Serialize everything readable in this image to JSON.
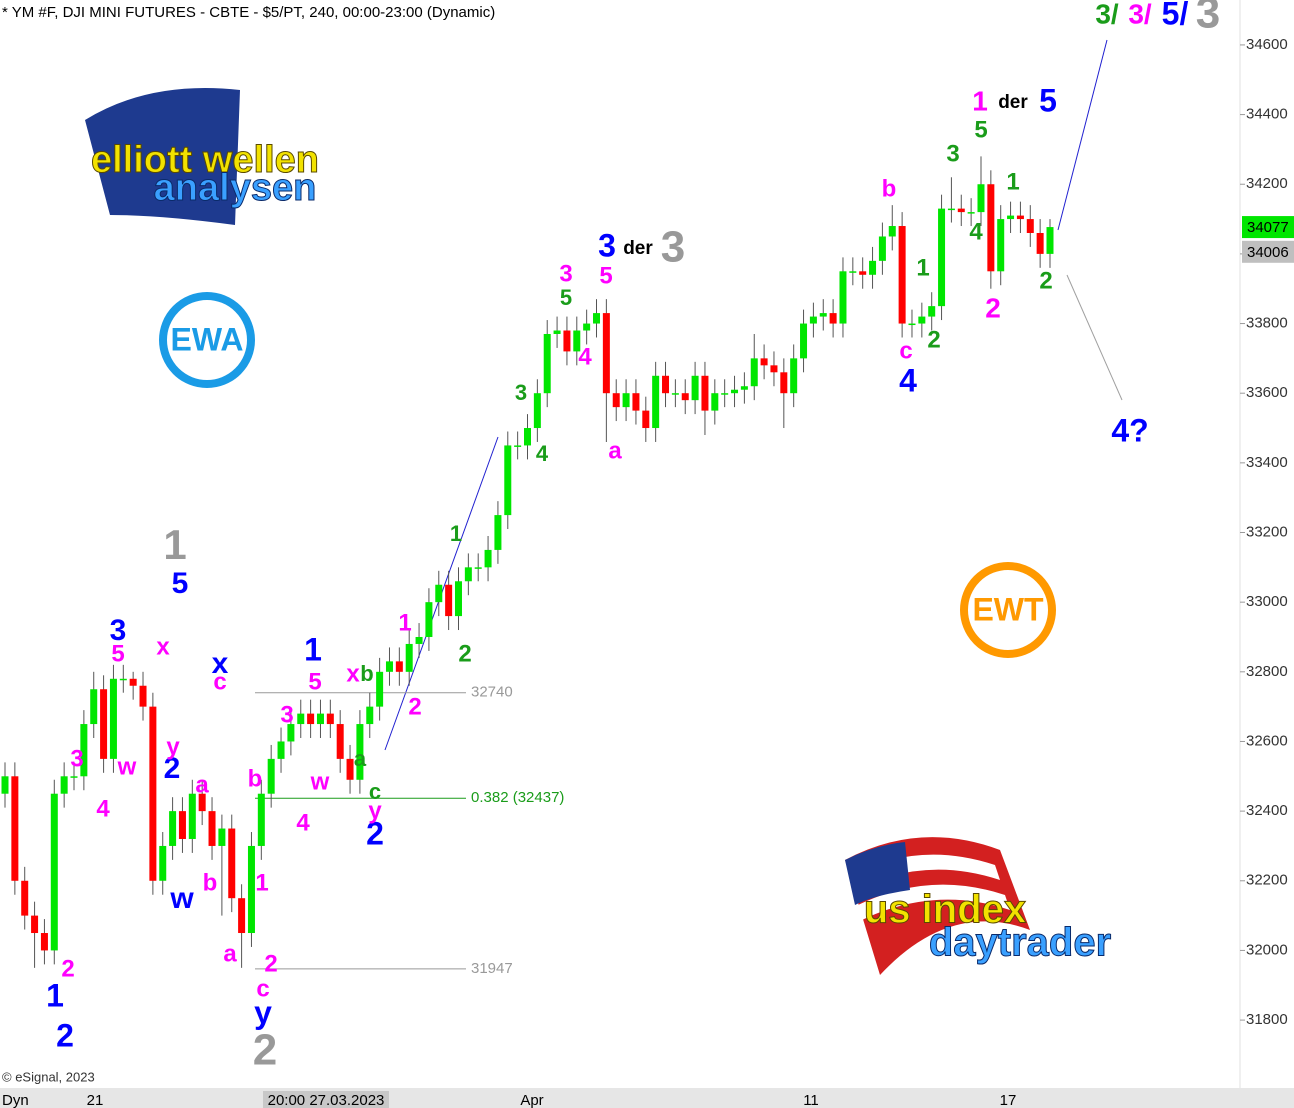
{
  "chart_data": {
    "type": "candlestick",
    "title": "* YM #F, DJI MINI FUTURES - CBTE - $5/PT, 240, 00:00-23:00 (Dynamic)",
    "footer": "© eSignal, 2023",
    "up_color": "#00e600",
    "down_color": "#ff0000",
    "ylim": [
      31605,
      34729
    ],
    "yticks": [
      31800,
      32000,
      32200,
      32400,
      32600,
      32800,
      33000,
      33200,
      33400,
      33600,
      33800,
      34000,
      34200,
      34400,
      34600
    ],
    "x_labels": [
      "Dyn",
      "21",
      "20:00 27.03.2023",
      "Apr",
      "11",
      "17"
    ],
    "price_tags": [
      {
        "value": 34077,
        "color": "#00e600"
      },
      {
        "value": 34006,
        "color": "#bfbfbf"
      }
    ],
    "levels": [
      {
        "value": 32740,
        "color": "#999999"
      },
      {
        "value": 32437,
        "label": "0.382 (32437)",
        "color": "#1a9c1a"
      },
      {
        "value": 31947,
        "color": "#999999"
      }
    ],
    "open": [
      32450,
      32500,
      32200,
      32100,
      32050,
      32000,
      32450,
      32500,
      32500,
      32650,
      32750,
      32550,
      32780,
      32780,
      32760,
      32700,
      32200,
      32300,
      32400,
      32320,
      32450,
      32400,
      32300,
      32350,
      32150,
      32050,
      32300,
      32450,
      32550,
      32600,
      32650,
      32680,
      32650,
      32680,
      32650,
      32550,
      32490,
      32650,
      32700,
      32800,
      32830,
      32800,
      32880,
      32900,
      33000,
      33050,
      32960,
      33060,
      33100,
      33100,
      33150,
      33250,
      33450,
      33450,
      33500,
      33600,
      33770,
      33780,
      33720,
      33780,
      33800,
      33830,
      33600,
      33560,
      33600,
      33550,
      33500,
      33650,
      33600,
      33600,
      33580,
      33650,
      33550,
      33600,
      33600,
      33610,
      33620,
      33700,
      33680,
      33660,
      33600,
      33700,
      33800,
      33820,
      33830,
      33800,
      33950,
      33950,
      33940,
      33980,
      34050,
      34080,
      33800,
      33800,
      33820,
      33850,
      34130,
      34130,
      34120,
      34120,
      34200,
      33950,
      34100,
      34110,
      34100,
      34060,
      34000
    ],
    "high": [
      32540,
      32540,
      32240,
      32140,
      32090,
      32490,
      32540,
      32540,
      32690,
      32800,
      32790,
      32820,
      32820,
      32800,
      32800,
      32740,
      32340,
      32440,
      32440,
      32490,
      32490,
      32440,
      32390,
      32390,
      32190,
      32340,
      32490,
      32590,
      32640,
      32690,
      32720,
      32720,
      32720,
      32720,
      32690,
      32590,
      32690,
      32740,
      32840,
      32870,
      32870,
      32920,
      32940,
      33040,
      33090,
      33090,
      33100,
      33140,
      33140,
      33190,
      33290,
      33490,
      33490,
      33540,
      33640,
      33810,
      33820,
      33820,
      33820,
      33840,
      33870,
      33870,
      33640,
      33640,
      33640,
      33590,
      33690,
      33690,
      33640,
      33640,
      33690,
      33690,
      33640,
      33640,
      33650,
      33660,
      33770,
      33740,
      33720,
      33700,
      33740,
      33840,
      33860,
      33870,
      33870,
      33990,
      33990,
      33990,
      34020,
      34090,
      34140,
      34120,
      33840,
      33860,
      33890,
      34170,
      34220,
      34170,
      34160,
      34280,
      34240,
      34140,
      34150,
      34150,
      34140,
      34100,
      34100
    ],
    "low": [
      32410,
      32160,
      32060,
      31950,
      31960,
      31960,
      32410,
      32460,
      32460,
      32610,
      32510,
      32510,
      32740,
      32720,
      32660,
      32160,
      32160,
      32260,
      32280,
      32280,
      32360,
      32260,
      32100,
      32110,
      31950,
      32010,
      32260,
      32410,
      32510,
      32560,
      32610,
      32610,
      32610,
      32610,
      32510,
      32450,
      32450,
      32610,
      32660,
      32760,
      32760,
      32760,
      32840,
      32860,
      32960,
      32920,
      32920,
      33020,
      33060,
      33060,
      33110,
      33210,
      33410,
      33410,
      33460,
      33560,
      33730,
      33680,
      33680,
      33740,
      33760,
      33460,
      33520,
      33520,
      33510,
      33460,
      33460,
      33560,
      33560,
      33540,
      33540,
      33480,
      33510,
      33560,
      33560,
      33570,
      33580,
      33640,
      33620,
      33500,
      33560,
      33660,
      33760,
      33780,
      33760,
      33760,
      33910,
      33900,
      33900,
      33940,
      34010,
      33760,
      33760,
      33760,
      33780,
      33810,
      34090,
      34080,
      34080,
      34080,
      33900,
      33910,
      34060,
      34060,
      34020,
      33960,
      33960
    ],
    "close": [
      32500,
      32200,
      32100,
      32050,
      32000,
      32450,
      32500,
      32500,
      32650,
      32750,
      32550,
      32780,
      32780,
      32760,
      32700,
      32200,
      32300,
      32400,
      32320,
      32450,
      32400,
      32300,
      32350,
      32150,
      32050,
      32300,
      32450,
      32550,
      32600,
      32650,
      32680,
      32650,
      32680,
      32650,
      32550,
      32490,
      32650,
      32700,
      32800,
      32830,
      32800,
      32880,
      32900,
      33000,
      33050,
      32960,
      33060,
      33100,
      33100,
      33150,
      33250,
      33450,
      33450,
      33500,
      33600,
      33770,
      33780,
      33720,
      33780,
      33800,
      33830,
      33600,
      33560,
      33600,
      33550,
      33500,
      33650,
      33600,
      33600,
      33580,
      33650,
      33550,
      33600,
      33600,
      33610,
      33620,
      33700,
      33680,
      33660,
      33600,
      33700,
      33800,
      33820,
      33830,
      33800,
      33950,
      33950,
      33940,
      33980,
      34050,
      34080,
      33800,
      33800,
      33820,
      33850,
      34130,
      34130,
      34120,
      34120,
      34200,
      33950,
      34100,
      34110,
      34100,
      34060,
      34000,
      34077
    ],
    "annotations": [
      {
        "text": "3/",
        "color": "#1a9c1a"
      },
      {
        "text": "3/",
        "color": "#ff00ff"
      },
      {
        "text": "5/",
        "color": "#0000ff"
      },
      {
        "text": "3",
        "color": "#999999"
      },
      {
        "text": "1",
        "color": "#999999"
      },
      {
        "text": "2",
        "color": "#999999"
      },
      {
        "text": "3",
        "color": "#999999"
      },
      {
        "text": "5",
        "color": "#0000ff"
      },
      {
        "text": "3",
        "color": "#0000ff"
      },
      {
        "text": "x",
        "color": "#0000ff"
      },
      {
        "text": "2",
        "color": "#0000ff"
      },
      {
        "text": "w",
        "color": "#0000ff"
      },
      {
        "text": "1",
        "color": "#0000ff"
      },
      {
        "text": "2",
        "color": "#0000ff"
      },
      {
        "text": "y",
        "color": "#0000ff"
      },
      {
        "text": "1",
        "color": "#0000ff"
      },
      {
        "text": "2",
        "color": "#0000ff"
      },
      {
        "text": "3",
        "color": "#0000ff"
      },
      {
        "text": "5",
        "color": "#0000ff"
      },
      {
        "text": "4",
        "color": "#0000ff"
      },
      {
        "text": "4?",
        "color": "#0000ff"
      },
      {
        "text": "5",
        "color": "#ff00ff"
      },
      {
        "text": "x",
        "color": "#ff00ff"
      },
      {
        "text": "c",
        "color": "#ff00ff"
      },
      {
        "text": "y",
        "color": "#ff00ff"
      },
      {
        "text": "3",
        "color": "#ff00ff"
      },
      {
        "text": "w",
        "color": "#ff00ff"
      },
      {
        "text": "4",
        "color": "#ff00ff"
      },
      {
        "text": "a",
        "color": "#ff00ff"
      },
      {
        "text": "b",
        "color": "#ff00ff"
      },
      {
        "text": "a",
        "color": "#ff00ff"
      },
      {
        "text": "1",
        "color": "#ff00ff"
      },
      {
        "text": "2",
        "color": "#ff00ff"
      },
      {
        "text": "2",
        "color": "#ff00ff"
      },
      {
        "text": "c",
        "color": "#ff00ff"
      },
      {
        "text": "b",
        "color": "#ff00ff"
      },
      {
        "text": "3",
        "color": "#ff00ff"
      },
      {
        "text": "5",
        "color": "#ff00ff"
      },
      {
        "text": "x",
        "color": "#ff00ff"
      },
      {
        "text": "w",
        "color": "#ff00ff"
      },
      {
        "text": "4",
        "color": "#ff00ff"
      },
      {
        "text": "y",
        "color": "#ff00ff"
      },
      {
        "text": "1",
        "color": "#ff00ff"
      },
      {
        "text": "2",
        "color": "#ff00ff"
      },
      {
        "text": "3",
        "color": "#ff00ff"
      },
      {
        "text": "5",
        "color": "#ff00ff"
      },
      {
        "text": "4",
        "color": "#ff00ff"
      },
      {
        "text": "a",
        "color": "#ff00ff"
      },
      {
        "text": "b",
        "color": "#ff00ff"
      },
      {
        "text": "c",
        "color": "#ff00ff"
      },
      {
        "text": "1",
        "color": "#ff00ff"
      },
      {
        "text": "2",
        "color": "#ff00ff"
      },
      {
        "text": "b",
        "color": "#1a9c1a"
      },
      {
        "text": "a",
        "color": "#1a9c1a"
      },
      {
        "text": "c",
        "color": "#1a9c1a"
      },
      {
        "text": "2",
        "color": "#1a9c1a"
      },
      {
        "text": "1",
        "color": "#1a9c1a"
      },
      {
        "text": "3",
        "color": "#1a9c1a"
      },
      {
        "text": "4",
        "color": "#1a9c1a"
      },
      {
        "text": "5",
        "color": "#1a9c1a"
      },
      {
        "text": "1",
        "color": "#1a9c1a"
      },
      {
        "text": "2",
        "color": "#1a9c1a"
      },
      {
        "text": "3",
        "color": "#1a9c1a"
      },
      {
        "text": "5",
        "color": "#1a9c1a"
      },
      {
        "text": "4",
        "color": "#1a9c1a"
      },
      {
        "text": "1",
        "color": "#1a9c1a"
      },
      {
        "text": "2",
        "color": "#1a9c1a"
      },
      {
        "text": "der",
        "color": "#000000"
      },
      {
        "text": "der",
        "color": "#000000"
      }
    ],
    "logos": {
      "elliott_top": "elliott wellen",
      "elliott_bottom": "analysen",
      "ewa": "EWA",
      "ewt": "EWT",
      "us_top": "us index",
      "us_bottom": "daytrader"
    }
  }
}
